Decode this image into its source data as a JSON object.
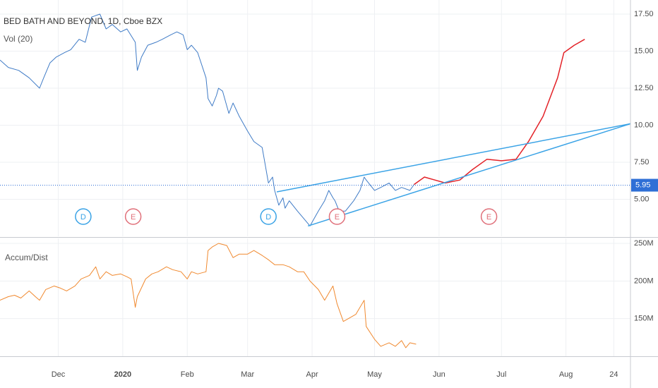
{
  "chart_data": [
    {
      "type": "line",
      "title": "BED BATH AND BEYOND, 1D, Cboe BZX",
      "subtitle": "Vol (20)",
      "xlim": [
        -28,
        275
      ],
      "ylim": [
        2.5,
        18.45
      ],
      "yticks": [
        {
          "value": 5,
          "label": "5.00"
        },
        {
          "value": 7.5,
          "label": "7.50"
        },
        {
          "value": 10,
          "label": "10.00"
        },
        {
          "value": 12.5,
          "label": "12.50"
        },
        {
          "value": 15,
          "label": "15.00"
        },
        {
          "value": 17.5,
          "label": "17.50"
        }
      ],
      "grid": true,
      "last_price": {
        "value": 5.95,
        "label": "5.95",
        "color": "#2f6fd6"
      },
      "series": [
        {
          "color": "#3f7bc6",
          "width": 1,
          "x": [
            -28,
            -24,
            -19,
            -14,
            -9,
            -7,
            -4,
            -1,
            3,
            6,
            10,
            13,
            16,
            20,
            23,
            26,
            30,
            33,
            37,
            38,
            40,
            43,
            47,
            50,
            54,
            57,
            60,
            62,
            64,
            67,
            71,
            72,
            74,
            76,
            77,
            79,
            81,
            82,
            84,
            87,
            91,
            94,
            98,
            99,
            101,
            103,
            104,
            106,
            108,
            109,
            111,
            115,
            118,
            121,
            125,
            128,
            130,
            132,
            133,
            135,
            138,
            142,
            145,
            147,
            148,
            152,
            155,
            159,
            162,
            165,
            169,
            171
          ],
          "values": [
            14.4,
            13.9,
            13.7,
            13.2,
            12.5,
            13.2,
            14.2,
            14.6,
            14.9,
            15.1,
            15.8,
            15.6,
            17.3,
            17.5,
            16.5,
            16.8,
            16.3,
            16.5,
            15.6,
            13.7,
            14.6,
            15.4,
            15.6,
            15.8,
            16.1,
            16.3,
            16.1,
            15.1,
            15.4,
            14.9,
            13.2,
            11.8,
            11.3,
            12.0,
            12.5,
            12.3,
            11.3,
            10.8,
            11.5,
            10.6,
            9.6,
            8.9,
            8.5,
            7.7,
            6.1,
            6.5,
            5.6,
            4.6,
            5.1,
            4.4,
            4.9,
            4.2,
            3.7,
            3.2,
            4.2,
            4.9,
            5.6,
            5.1,
            4.9,
            4.2,
            4.2,
            4.9,
            5.6,
            6.5,
            6.3,
            5.6,
            5.8,
            6.1,
            5.6,
            5.8,
            5.6,
            6.0
          ]
        },
        {
          "color": "#e32228",
          "width": 1.5,
          "x": [
            171,
            176,
            181,
            186,
            193,
            199,
            206,
            213,
            220,
            226,
            233,
            240,
            243,
            248,
            253
          ],
          "values": [
            6.0,
            6.5,
            6.3,
            6.1,
            6.3,
            7.0,
            7.7,
            7.6,
            7.7,
            8.9,
            10.6,
            13.2,
            14.9,
            15.4,
            15.8
          ]
        },
        {
          "color": "#3aa3e6",
          "width": 1.5,
          "x": [
            105,
            275
          ],
          "values": [
            5.5,
            10.1
          ]
        },
        {
          "color": "#3aa3e6",
          "width": 1.5,
          "x": [
            120,
            275
          ],
          "values": [
            3.2,
            10.1
          ]
        }
      ],
      "events": [
        {
          "label": "D",
          "x": 12,
          "color": "#3aa3e6"
        },
        {
          "label": "E",
          "x": 36,
          "color": "#e0707a"
        },
        {
          "label": "D",
          "x": 101,
          "color": "#3aa3e6"
        },
        {
          "label": "E",
          "x": 134,
          "color": "#e0707a"
        },
        {
          "label": "E",
          "x": 207,
          "color": "#e0707a"
        }
      ]
    },
    {
      "type": "line",
      "title": "Accum/Dist",
      "xlim": [
        -28,
        275
      ],
      "ylim": [
        100,
        256.6
      ],
      "yticks": [
        {
          "value": 150,
          "label": "150M"
        },
        {
          "value": 200,
          "label": "200M"
        },
        {
          "value": 250,
          "label": "250M"
        }
      ],
      "xticks": [
        {
          "value": 0,
          "label": "Dec"
        },
        {
          "value": 31,
          "label": "2020"
        },
        {
          "value": 62,
          "label": "Feb"
        },
        {
          "value": 91,
          "label": "Mar"
        },
        {
          "value": 122,
          "label": "Apr"
        },
        {
          "value": 152,
          "label": "May"
        },
        {
          "value": 183,
          "label": "Jun"
        },
        {
          "value": 213,
          "label": "Jul"
        },
        {
          "value": 244,
          "label": "Aug"
        },
        {
          "value": 267,
          "label": "24"
        }
      ],
      "grid": true,
      "series": [
        {
          "color": "#f0892f",
          "width": 1,
          "x": [
            -28,
            -24,
            -21,
            -18,
            -14,
            -11,
            -9,
            -6,
            -2,
            1,
            4,
            8,
            11,
            15,
            18,
            20,
            23,
            26,
            30,
            33,
            35,
            37,
            38,
            42,
            45,
            48,
            52,
            55,
            59,
            62,
            64,
            67,
            71,
            72,
            74,
            77,
            81,
            84,
            87,
            91,
            94,
            98,
            101,
            104,
            108,
            111,
            115,
            118,
            121,
            125,
            128,
            132,
            134,
            137,
            140,
            143,
            147,
            148,
            152,
            155,
            159,
            162,
            165,
            167,
            169,
            172
          ],
          "values": [
            174.5,
            179.2,
            181.1,
            177.4,
            186.8,
            179.2,
            174.5,
            188.7,
            193.4,
            190.6,
            186.8,
            193.4,
            202.8,
            207.5,
            218.9,
            202.8,
            212.3,
            207.5,
            209.4,
            205.7,
            202.8,
            165.1,
            179.2,
            202.8,
            209.4,
            212.3,
            218.9,
            215.1,
            212.3,
            202.8,
            212.3,
            209.4,
            212.3,
            240.6,
            245.3,
            250,
            247.2,
            231.1,
            235.8,
            235.8,
            240.6,
            234,
            228.3,
            221.7,
            221.7,
            218.9,
            212.3,
            212.3,
            200,
            188.7,
            174.5,
            193.4,
            169.8,
            146.2,
            150.9,
            155.7,
            174.5,
            139.6,
            122.6,
            113.2,
            117.9,
            113.2,
            120.8,
            111.3,
            117.9,
            116
          ]
        }
      ]
    }
  ]
}
